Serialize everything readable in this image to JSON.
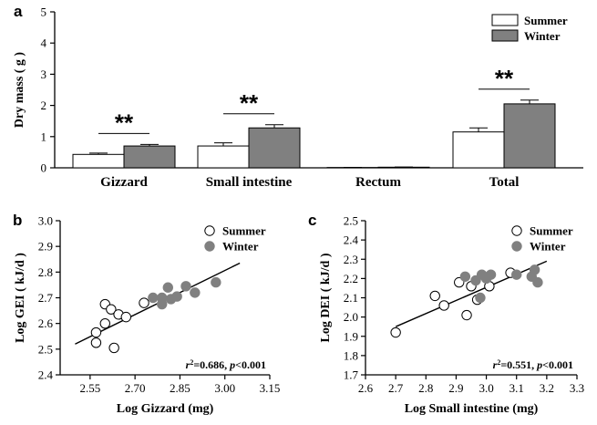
{
  "chart_data": [
    {
      "panel": "a",
      "type": "bar",
      "ylabel": "Dry mass ( g )",
      "ylim": [
        0,
        5
      ],
      "yticks": [
        "0",
        "1",
        "2",
        "3",
        "4",
        "5"
      ],
      "categories": [
        "Gizzard",
        "Small intestine",
        "Rectum",
        "Total"
      ],
      "series": [
        {
          "name": "Summer",
          "values": [
            0.43,
            0.7,
            0.01,
            1.15
          ],
          "errors": [
            0.04,
            0.1,
            0.005,
            0.13
          ],
          "color": "#ffffff"
        },
        {
          "name": "Winter",
          "values": [
            0.7,
            1.28,
            0.02,
            2.05
          ],
          "errors": [
            0.05,
            0.1,
            0.005,
            0.12
          ],
          "color": "#808080"
        }
      ],
      "significance": [
        "**",
        "**",
        "",
        "**"
      ],
      "legend": "top-right"
    },
    {
      "panel": "b",
      "type": "scatter",
      "xlabel": "Log Gizzard (mg)",
      "ylabel": "Log GEI ( kJ/d )",
      "xlim": [
        2.45,
        3.15
      ],
      "ylim": [
        2.4,
        3.0
      ],
      "xticks": [
        "2.55",
        "2.70",
        "2.85",
        "3.00",
        "3.15"
      ],
      "yticks": [
        "2.4",
        "2.5",
        "2.6",
        "2.7",
        "2.8",
        "2.9",
        "3.0"
      ],
      "series": [
        {
          "name": "Summer",
          "marker": "open-circle",
          "x": [
            2.57,
            2.6,
            2.6,
            2.62,
            2.63,
            2.645,
            2.67,
            2.73,
            2.57
          ],
          "y": [
            2.565,
            2.675,
            2.6,
            2.655,
            2.505,
            2.635,
            2.625,
            2.68,
            2.525
          ]
        },
        {
          "name": "Winter",
          "marker": "filled-circle",
          "x": [
            2.76,
            2.79,
            2.81,
            2.82,
            2.84,
            2.87,
            2.9,
            2.97,
            2.79
          ],
          "y": [
            2.7,
            2.675,
            2.74,
            2.695,
            2.705,
            2.745,
            2.72,
            2.76,
            2.7
          ]
        }
      ],
      "fit_line": {
        "x": [
          2.5,
          3.05
        ],
        "y": [
          2.52,
          2.835
        ]
      },
      "annotation": {
        "r2": "r",
        "sup": "2",
        "text": "=0.686, ",
        "p": "p",
        "rest": "<0.001"
      },
      "legend": "top-right"
    },
    {
      "panel": "c",
      "type": "scatter",
      "xlabel": "Log Small intestine (mg)",
      "ylabel": "Log DEI ( kJ/d )",
      "xlim": [
        2.6,
        3.3
      ],
      "ylim": [
        1.7,
        2.5
      ],
      "xticks": [
        "2.6",
        "2.7",
        "2.8",
        "2.9",
        "3.0",
        "3.1",
        "3.2",
        "3.3"
      ],
      "yticks": [
        "1.7",
        "1.8",
        "1.9",
        "2.0",
        "2.1",
        "2.2",
        "2.3",
        "2.4",
        "2.5"
      ],
      "series": [
        {
          "name": "Summer",
          "marker": "open-circle",
          "x": [
            2.7,
            2.83,
            2.86,
            2.91,
            2.935,
            2.95,
            2.97,
            3.01,
            3.08
          ],
          "y": [
            1.92,
            2.11,
            2.06,
            2.18,
            2.01,
            2.16,
            2.09,
            2.16,
            2.23
          ]
        },
        {
          "name": "Winter",
          "marker": "filled-circle",
          "x": [
            2.93,
            2.965,
            2.985,
            3.0,
            3.015,
            3.1,
            3.15,
            3.16,
            3.17,
            2.98
          ],
          "y": [
            2.21,
            2.19,
            2.22,
            2.2,
            2.22,
            2.22,
            2.21,
            2.245,
            2.18,
            2.1
          ]
        }
      ],
      "fit_line": {
        "x": [
          2.7,
          3.2
        ],
        "y": [
          1.95,
          2.29
        ]
      },
      "annotation": {
        "r2": "r",
        "sup": "2",
        "text": "=0.551, ",
        "p": "p",
        "rest": "<0.001"
      },
      "legend": "top-right"
    }
  ]
}
